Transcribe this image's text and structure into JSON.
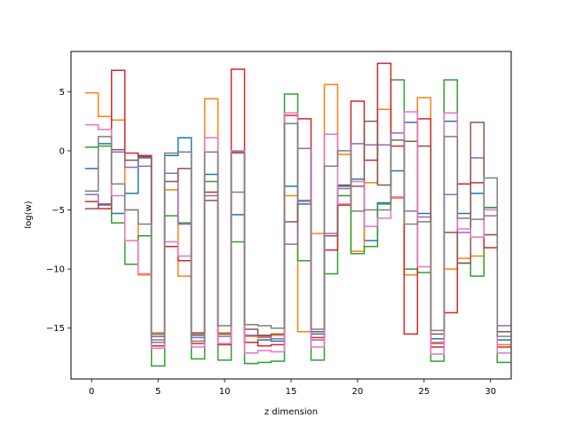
{
  "chart_data": {
    "type": "line",
    "style": "step",
    "xlabel": "z dimension",
    "ylabel": "log(w)",
    "xlim": [
      -1.55,
      31.55
    ],
    "ylim": [
      -19.3,
      8.4
    ],
    "xticks": [
      0,
      5,
      10,
      15,
      20,
      25,
      30
    ],
    "yticks": [
      -15,
      -10,
      -5,
      0,
      5
    ],
    "grid": false,
    "x": [
      0,
      1,
      2,
      3,
      4,
      5,
      6,
      7,
      8,
      9,
      10,
      11,
      12,
      13,
      14,
      15,
      16,
      17,
      18,
      19,
      20,
      21,
      22,
      23,
      24,
      25,
      26,
      27,
      28,
      29,
      30,
      31
    ],
    "series": [
      {
        "color": "#1f77b4",
        "values": [
          -1.5,
          0.6,
          -5.3,
          -3.6,
          -0.5,
          -15.5,
          -0.4,
          1.1,
          -15.6,
          -2.0,
          -15.5,
          -5.4,
          -16.2,
          -16.0,
          -16.1,
          -3.0,
          -4.5,
          -15.5,
          -7.2,
          -3.0,
          -2.4,
          -7.6,
          -4.4,
          -1.7,
          2.4,
          -5.3,
          -15.9,
          2.5,
          -5.3,
          -3.6,
          -4.8,
          -16.0
        ]
      },
      {
        "color": "#ff7f0e",
        "values": [
          4.9,
          2.9,
          2.6,
          -5.0,
          -10.5,
          -15.4,
          -3.3,
          -10.6,
          -15.5,
          4.4,
          -15.4,
          -0.1,
          -15.7,
          -15.8,
          -15.6,
          -3.8,
          -15.3,
          -7.0,
          5.6,
          -0.3,
          -8.5,
          -2.7,
          3.5,
          -4.0,
          -10.5,
          4.5,
          -16.2,
          -10.0,
          -9.1,
          -8.9,
          -7.1,
          -16.4
        ]
      },
      {
        "color": "#2ca02c",
        "values": [
          0.3,
          0.4,
          -6.1,
          -9.6,
          -7.2,
          -18.2,
          -5.5,
          -6.1,
          -17.6,
          -2.6,
          -17.7,
          -7.7,
          -18.0,
          -17.9,
          -17.8,
          4.8,
          -9.3,
          -17.7,
          -10.4,
          -3.8,
          -8.7,
          -8.1,
          -4.5,
          6.0,
          -10.0,
          -10.3,
          -17.8,
          6.0,
          -9.5,
          -10.6,
          -4.8,
          -17.9
        ]
      },
      {
        "color": "#d62728",
        "values": [
          -4.3,
          -4.9,
          6.8,
          -0.2,
          -0.4,
          -16.5,
          -8.1,
          -9.3,
          -16.3,
          -3.5,
          -16.4,
          6.9,
          -16.2,
          -16.5,
          -16.4,
          3.0,
          2.7,
          -15.8,
          -8.4,
          -4.6,
          4.2,
          -0.8,
          7.4,
          0.4,
          -15.5,
          2.7,
          -16.6,
          -13.7,
          -2.8,
          -2.7,
          -8.2,
          -16.6
        ]
      },
      {
        "color": "#9467bd",
        "values": [
          -3.7,
          -4.6,
          -0.1,
          -1.4,
          -1.3,
          -16.0,
          -1.9,
          -6.2,
          -15.8,
          -3.8,
          -15.7,
          -3.5,
          -15.6,
          -15.7,
          -15.9,
          -7.9,
          0.2,
          -16.0,
          -7.0,
          -3.2,
          0.6,
          0.5,
          0.5,
          1.5,
          -5.1,
          -5.6,
          -16.3,
          -3.7,
          -6.9,
          -0.6,
          -5.5,
          -14.8
        ]
      },
      {
        "color": "#8c564b",
        "values": [
          -4.9,
          -4.5,
          0.1,
          -0.8,
          -0.6,
          -15.7,
          -2.6,
          -1.5,
          -15.4,
          -4.2,
          -15.5,
          -0.1,
          -15.1,
          -15.6,
          -15.5,
          -6.0,
          -4.2,
          -15.3,
          -7.2,
          -2.9,
          -3.0,
          2.5,
          -2.9,
          0.9,
          0.8,
          0.4,
          -15.5,
          -6.9,
          -9.5,
          2.4,
          -7.1,
          -15.3
        ]
      },
      {
        "color": "#e377c2",
        "values": [
          2.2,
          1.8,
          -3.8,
          -7.6,
          -10.4,
          -16.7,
          -7.7,
          -8.9,
          -16.6,
          1.1,
          -16.3,
          0.0,
          -17.1,
          -16.9,
          -17.0,
          3.2,
          -4.3,
          -16.6,
          1.4,
          -4.5,
          -2.6,
          -6.4,
          -5.7,
          -3.9,
          3.3,
          -9.8,
          -17.2,
          3.2,
          -6.6,
          -7.3,
          -5.0,
          -17.1
        ]
      },
      {
        "color": "#7f7f7f",
        "values": [
          -3.4,
          1.2,
          -2.8,
          -5.0,
          -6.2,
          -16.2,
          -0.2,
          -0.1,
          -16.1,
          -0.1,
          -14.8,
          -0.2,
          -14.7,
          -14.8,
          -15.0,
          2.3,
          -4.2,
          -15.1,
          -1.3,
          0.0,
          -5.1,
          -5.0,
          -5.0,
          0.9,
          -6.2,
          -6.0,
          -15.2,
          1.2,
          -5.7,
          -5.8,
          -2.3,
          -15.7
        ]
      }
    ]
  }
}
